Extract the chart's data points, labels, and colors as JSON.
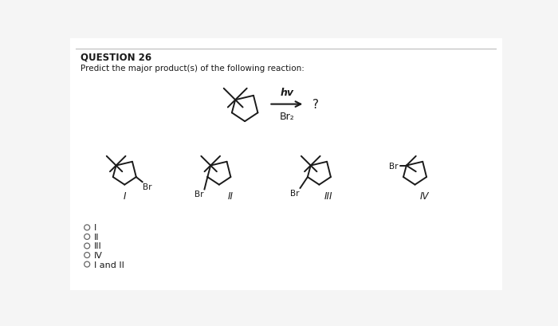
{
  "title": "QUESTION 26",
  "subtitle": "Predict the major product(s) of the following reaction:",
  "background_color": "#f5f5f5",
  "panel_color": "#ffffff",
  "text_color": "#1a1a1a",
  "radio_options": [
    "I",
    "II",
    "III",
    "IV",
    "I and II"
  ],
  "reagent_top": "hv",
  "reagent_bottom": "Br₂",
  "question_mark": "?",
  "line_color": "#1a1a1a",
  "lw": 1.4
}
